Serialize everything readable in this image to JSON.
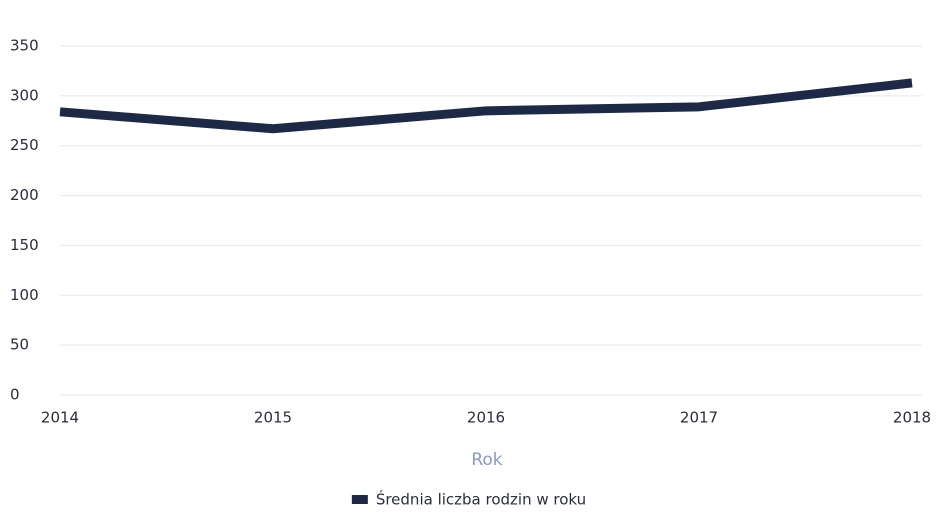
{
  "chart_data": {
    "type": "line",
    "categories": [
      "2014",
      "2015",
      "2016",
      "2017",
      "2018"
    ],
    "series": [
      {
        "name": "Średnia liczba rodzin w roku",
        "color": "#1e2a45",
        "values": [
          284,
          267,
          285,
          289,
          313
        ]
      }
    ],
    "x_label": "Rok",
    "ylim": [
      0,
      350
    ],
    "yticks": [
      0,
      50,
      100,
      150,
      200,
      250,
      300,
      350
    ],
    "grid": true,
    "legend": "bottom"
  }
}
